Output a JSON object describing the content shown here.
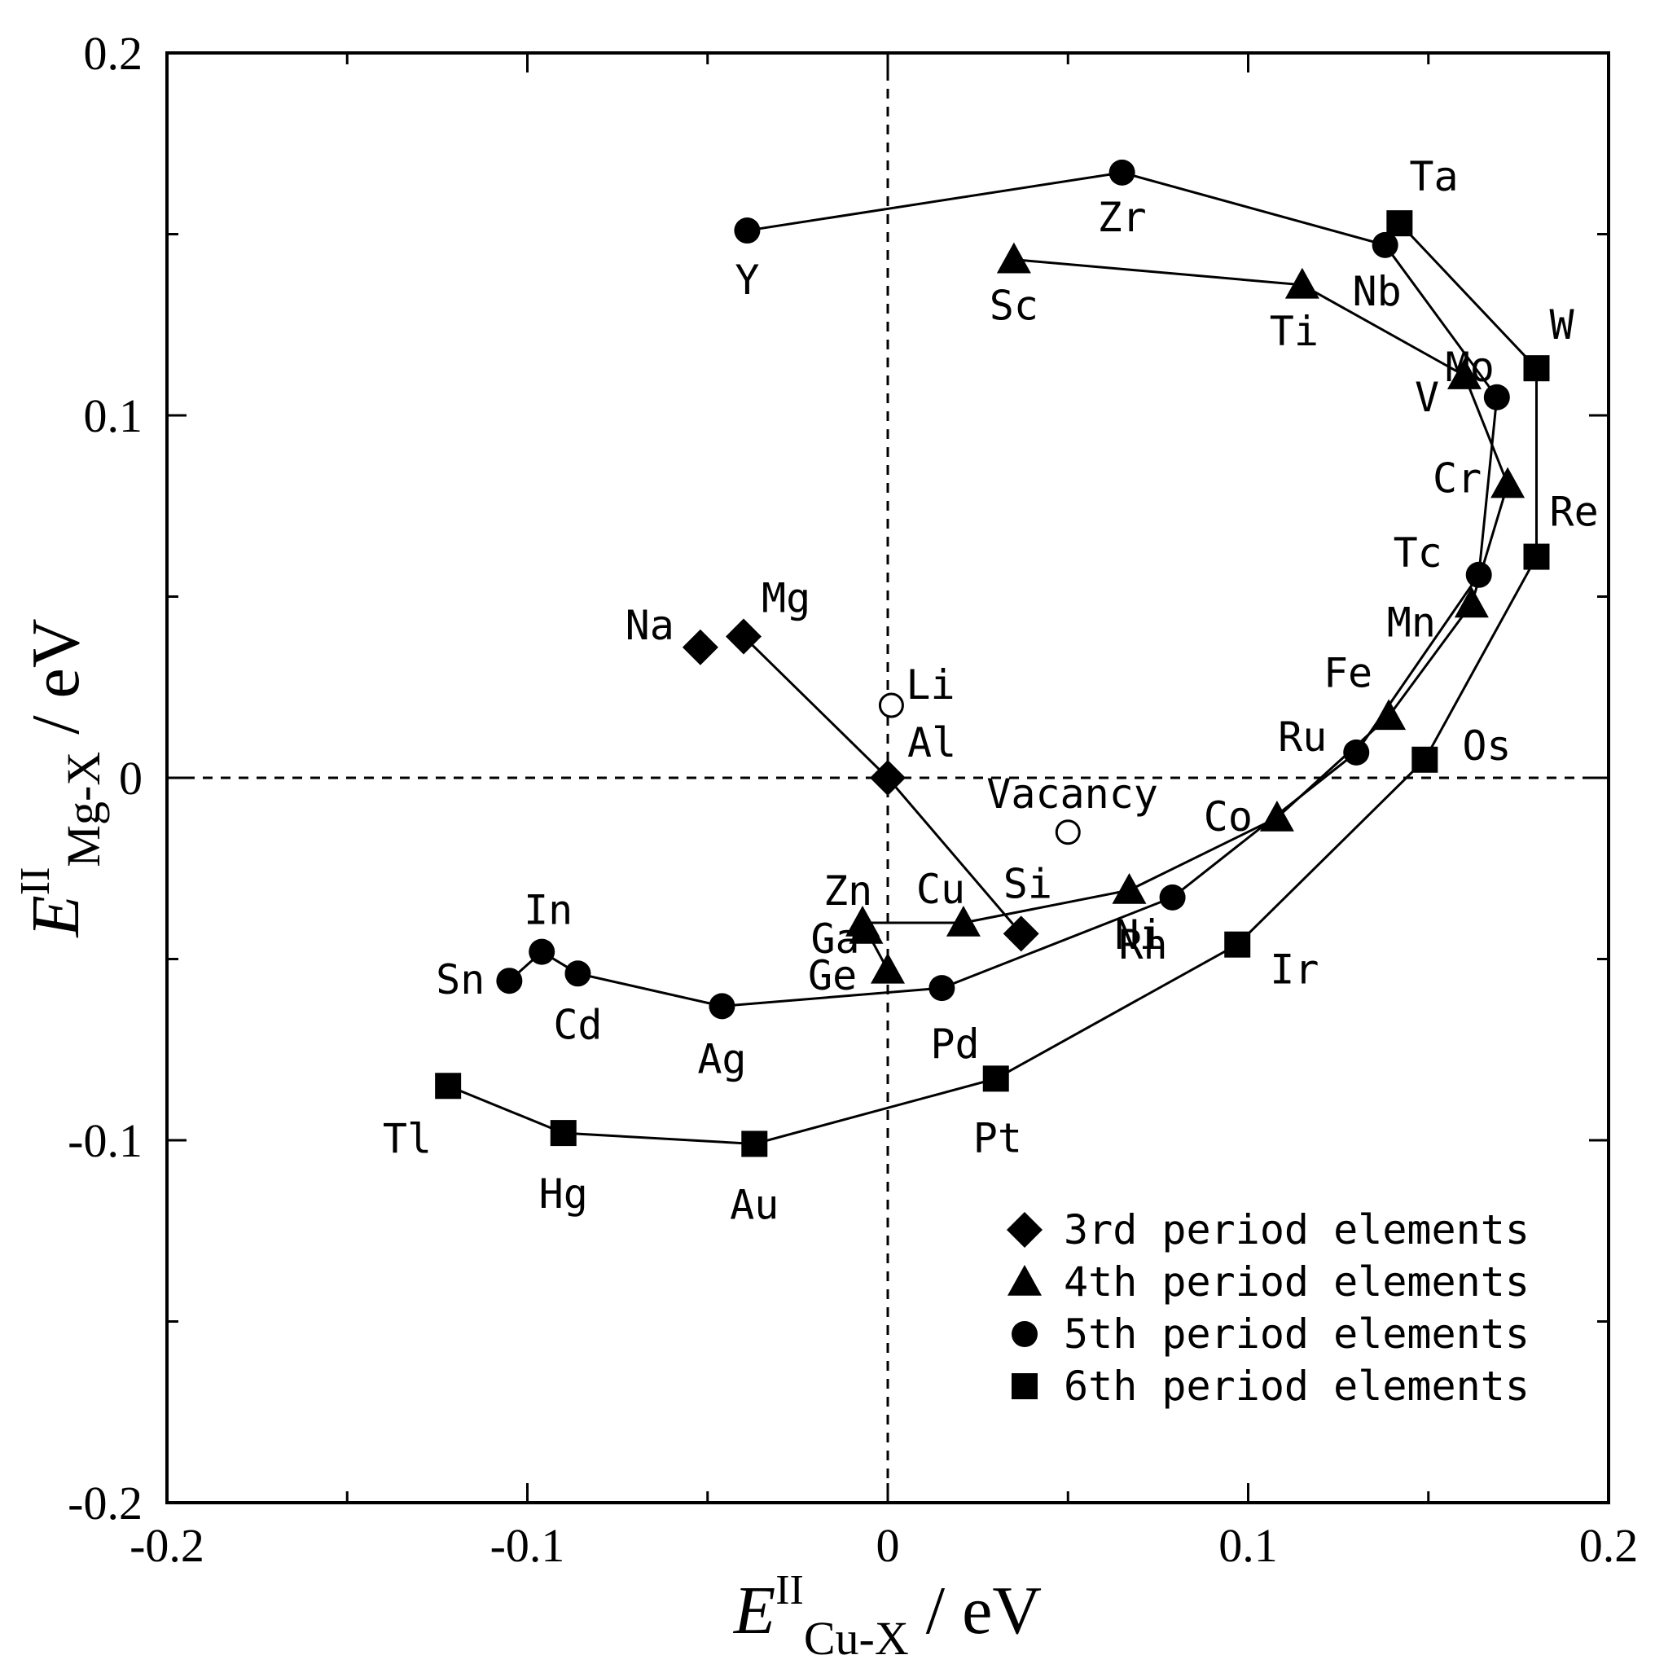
{
  "chart_data": {
    "type": "scatter",
    "title": "",
    "xlabel": {
      "main": "E",
      "sup": "II",
      "sub": "Cu-X",
      "unit": " / eV"
    },
    "ylabel": {
      "main": "E",
      "sup": "II",
      "sub": "Mg-X",
      "unit": " / eV"
    },
    "xlim": [
      -0.2,
      0.2
    ],
    "ylim": [
      -0.2,
      0.2
    ],
    "xticks": [
      -0.2,
      -0.1,
      0,
      0.1,
      0.2
    ],
    "xtick_labels": [
      "-0.2",
      "-0.1",
      "0",
      "0.1",
      "0.2"
    ],
    "yticks": [
      -0.2,
      -0.1,
      0,
      0.1,
      0.2
    ],
    "ytick_labels": [
      "-0.2",
      "-0.1",
      "0",
      "0.1",
      "0.2"
    ],
    "grid": false,
    "reference_lines": {
      "x": 0,
      "y": 0,
      "style": "dashed"
    },
    "legend_position": "bottom-right",
    "series": [
      {
        "name": "3rd period elements",
        "marker": "diamond",
        "points": [
          {
            "label": "Na",
            "x": -0.052,
            "y": 0.036
          },
          {
            "label": "Mg",
            "x": -0.04,
            "y": 0.039
          },
          {
            "label": "Al",
            "x": 0.0,
            "y": 0.0
          },
          {
            "label": "Si",
            "x": 0.037,
            "y": -0.043
          }
        ],
        "lines": [
          [
            "Mg",
            "Al",
            "Si"
          ]
        ]
      },
      {
        "name": "4th period elements",
        "marker": "triangle",
        "points": [
          {
            "label": "Sc",
            "x": 0.035,
            "y": 0.143
          },
          {
            "label": "Ti",
            "x": 0.115,
            "y": 0.136
          },
          {
            "label": "V",
            "x": 0.16,
            "y": 0.111
          },
          {
            "label": "Cr",
            "x": 0.172,
            "y": 0.081
          },
          {
            "label": "Mn",
            "x": 0.162,
            "y": 0.048
          },
          {
            "label": "Fe",
            "x": 0.139,
            "y": 0.017
          },
          {
            "label": "Co",
            "x": 0.108,
            "y": -0.011
          },
          {
            "label": "Ni",
            "x": 0.067,
            "y": -0.031
          },
          {
            "label": "Cu",
            "x": 0.021,
            "y": -0.04
          },
          {
            "label": "Zn",
            "x": -0.007,
            "y": -0.04
          },
          {
            "label": "Ga",
            "x": -0.006,
            "y": -0.042
          },
          {
            "label": "Ge",
            "x": 0.0,
            "y": -0.053
          }
        ],
        "lines": [
          [
            "Sc",
            "Ti",
            "V",
            "Cr",
            "Mn",
            "Fe",
            "Co",
            "Ni",
            "Cu",
            "Zn"
          ],
          [
            "Ga",
            "Ge"
          ]
        ]
      },
      {
        "name": "5th period elements",
        "marker": "circle",
        "points": [
          {
            "label": "Y",
            "x": -0.039,
            "y": 0.151
          },
          {
            "label": "Zr",
            "x": 0.065,
            "y": 0.167
          },
          {
            "label": "Nb",
            "x": 0.138,
            "y": 0.147
          },
          {
            "label": "Mo",
            "x": 0.169,
            "y": 0.105
          },
          {
            "label": "Tc",
            "x": 0.164,
            "y": 0.056
          },
          {
            "label": "Ru",
            "x": 0.13,
            "y": 0.007
          },
          {
            "label": "Rh",
            "x": 0.079,
            "y": -0.033
          },
          {
            "label": "Pd",
            "x": 0.015,
            "y": -0.058
          },
          {
            "label": "Ag",
            "x": -0.046,
            "y": -0.063
          },
          {
            "label": "Cd",
            "x": -0.086,
            "y": -0.054
          },
          {
            "label": "In",
            "x": -0.096,
            "y": -0.048
          },
          {
            "label": "Sn",
            "x": -0.105,
            "y": -0.056
          }
        ],
        "lines": [
          [
            "Y",
            "Zr",
            "Nb",
            "Mo",
            "Tc",
            "Ru",
            "Rh",
            "Pd",
            "Ag",
            "Cd",
            "In",
            "Sn"
          ]
        ]
      },
      {
        "name": "6th period elements",
        "marker": "square",
        "points": [
          {
            "label": "Ta",
            "x": 0.142,
            "y": 0.153
          },
          {
            "label": "W",
            "x": 0.18,
            "y": 0.113
          },
          {
            "label": "Re",
            "x": 0.18,
            "y": 0.061
          },
          {
            "label": "Os",
            "x": 0.149,
            "y": 0.005
          },
          {
            "label": "Ir",
            "x": 0.097,
            "y": -0.046
          },
          {
            "label": "Pt",
            "x": 0.03,
            "y": -0.083
          },
          {
            "label": "Au",
            "x": -0.037,
            "y": -0.101
          },
          {
            "label": "Hg",
            "x": -0.09,
            "y": -0.098
          },
          {
            "label": "Tl",
            "x": -0.122,
            "y": -0.085
          }
        ],
        "lines": [
          [
            "Ta",
            "W",
            "Re",
            "Os",
            "Ir",
            "Pt",
            "Au",
            "Hg",
            "Tl"
          ]
        ]
      },
      {
        "name": "other",
        "marker": "open-circle",
        "in_legend": false,
        "points": [
          {
            "label": "Li",
            "x": 0.001,
            "y": 0.02
          },
          {
            "label": "Vacancy",
            "x": 0.05,
            "y": -0.015
          }
        ],
        "lines": []
      }
    ]
  }
}
